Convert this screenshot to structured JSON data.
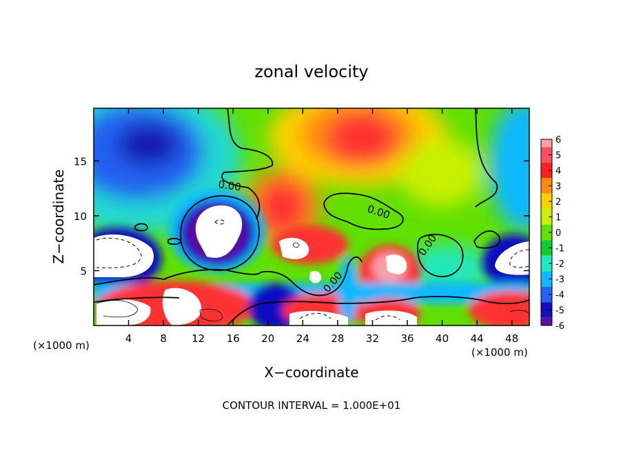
{
  "chart_data": {
    "type": "heatmap",
    "title": "zonal velocity",
    "xlabel": "X−coordinate",
    "ylabel": "Z−coordinate",
    "x_unit_left": "(×1000 m)",
    "x_unit_right": "(×1000 m)",
    "footnote": "CONTOUR INTERVAL = 1.000E+01",
    "contour_label": "0.00",
    "xlim": [
      0,
      50
    ],
    "ylim": [
      0,
      19.8
    ],
    "x_ticks": [
      4,
      8,
      12,
      16,
      20,
      24,
      28,
      32,
      36,
      40,
      44,
      48
    ],
    "y_ticks": [
      5,
      10,
      15
    ],
    "colorbar": {
      "levels": [
        6,
        5,
        4,
        3,
        2,
        1,
        0,
        -1,
        -2,
        -3,
        -4,
        -5,
        -6
      ],
      "colors": [
        "#f7a0a8",
        "#ff5060",
        "#ff2020",
        "#ff8a10",
        "#ffd000",
        "#c8f000",
        "#60e000",
        "#10c830",
        "#20e8c0",
        "#10b8ff",
        "#2860f0",
        "#1010c0",
        "#6010a0"
      ]
    },
    "features": [
      {
        "name": "negative-jet-upper-left",
        "x": 8,
        "z": 16,
        "value": -4
      },
      {
        "name": "positive-core-upper-center",
        "x": 31,
        "z": 17.5,
        "value": 5
      },
      {
        "name": "positive-band-center",
        "x": 22,
        "z": 11,
        "value": 4
      },
      {
        "name": "negative-pocket-left",
        "x": 14,
        "z": 9,
        "value": -6
      },
      {
        "name": "negative-pocket-right",
        "x": 47,
        "z": 6,
        "value": -5
      },
      {
        "name": "positive-near-surface",
        "x": 10,
        "z": 2,
        "value": 5
      }
    ]
  }
}
